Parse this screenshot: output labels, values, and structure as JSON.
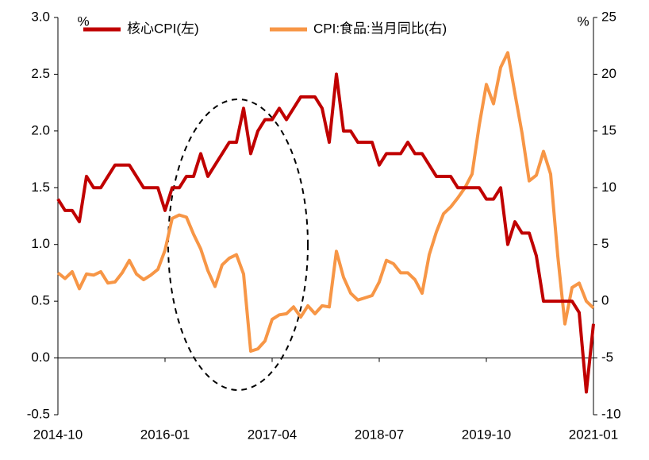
{
  "chart_data": {
    "type": "line",
    "categories": [
      "2014-10",
      null,
      null,
      null,
      null,
      null,
      null,
      null,
      null,
      null,
      null,
      null,
      null,
      null,
      null,
      "2016-01",
      null,
      null,
      null,
      null,
      null,
      null,
      null,
      null,
      null,
      null,
      null,
      null,
      null,
      null,
      "2017-04",
      null,
      null,
      null,
      null,
      null,
      null,
      null,
      null,
      null,
      null,
      null,
      null,
      null,
      null,
      "2018-07",
      null,
      null,
      null,
      null,
      null,
      null,
      null,
      null,
      null,
      null,
      null,
      null,
      null,
      null,
      "2019-10",
      null,
      null,
      null,
      null,
      null,
      null,
      null,
      null,
      null,
      null,
      null,
      null,
      null,
      null,
      "2021-01"
    ],
    "series": [
      {
        "name": "核心CPI(左)",
        "color": "#c00000",
        "axis": "y",
        "values": [
          1.4,
          1.3,
          1.3,
          1.2,
          1.6,
          1.5,
          1.5,
          1.6,
          1.7,
          1.7,
          1.7,
          1.6,
          1.5,
          1.5,
          1.5,
          1.3,
          1.5,
          1.5,
          1.6,
          1.6,
          1.8,
          1.6,
          1.7,
          1.8,
          1.9,
          1.9,
          2.2,
          1.8,
          2.0,
          2.1,
          2.1,
          2.2,
          2.1,
          2.2,
          2.3,
          2.3,
          2.3,
          2.2,
          1.9,
          2.5,
          2.0,
          2.0,
          1.9,
          1.9,
          1.9,
          1.7,
          1.8,
          1.8,
          1.8,
          1.9,
          1.8,
          1.8,
          1.7,
          1.6,
          1.6,
          1.6,
          1.5,
          1.5,
          1.5,
          1.5,
          1.4,
          1.4,
          1.5,
          1.0,
          1.2,
          1.1,
          1.1,
          0.9,
          0.5,
          0.5,
          0.5,
          0.5,
          0.5,
          0.4,
          -0.3,
          0.3
        ]
      },
      {
        "name": "CPI:食品:当月同比(右)",
        "color": "#f79646",
        "axis": "y2",
        "values": [
          2.5,
          2.0,
          2.6,
          1.1,
          2.4,
          2.3,
          2.6,
          1.6,
          1.7,
          2.5,
          3.6,
          2.4,
          1.9,
          2.3,
          2.8,
          4.5,
          7.3,
          7.6,
          7.4,
          5.9,
          4.6,
          2.7,
          1.3,
          3.2,
          3.8,
          4.1,
          2.4,
          -4.4,
          -4.2,
          -3.5,
          -1.6,
          -1.2,
          -1.1,
          -0.5,
          -1.4,
          -0.4,
          -1.1,
          -0.4,
          -0.5,
          4.4,
          2.1,
          0.7,
          0.1,
          0.3,
          0.5,
          1.7,
          3.6,
          3.3,
          2.5,
          2.5,
          1.9,
          0.7,
          4.1,
          6.1,
          7.7,
          8.3,
          9.1,
          10.0,
          11.2,
          15.5,
          19.1,
          17.4,
          20.6,
          21.9,
          18.3,
          14.8,
          10.6,
          11.1,
          13.2,
          11.2,
          4.0,
          -2.0,
          1.2,
          1.6,
          0.0,
          -0.6
        ]
      }
    ],
    "y_unit": "%",
    "y2_unit": "%",
    "ylim": [
      -0.5,
      3.0
    ],
    "yticks": [
      -0.5,
      {
        "value": 0,
        "label": "0.0"
      },
      0.5,
      {
        "value": 1,
        "label": "1.0"
      },
      1.5,
      {
        "value": 2,
        "label": "2.0"
      },
      2.5,
      {
        "value": 3,
        "label": "3.0"
      }
    ],
    "y2lim": [
      -10,
      25
    ],
    "y2ticks": [
      -10,
      -5,
      0,
      5,
      10,
      15,
      20,
      25
    ],
    "grid": false,
    "legend": "top"
  }
}
